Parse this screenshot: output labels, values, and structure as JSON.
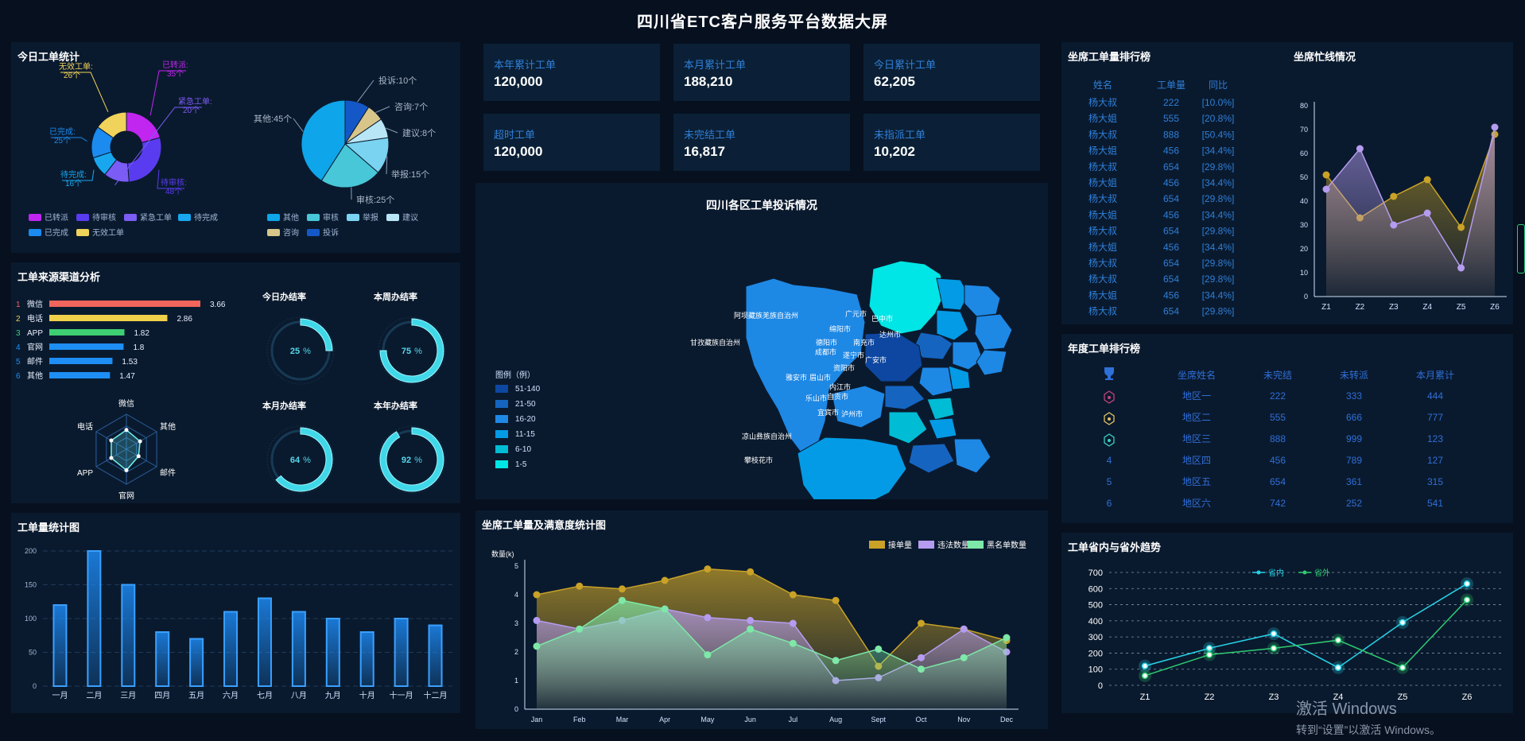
{
  "header": {
    "title": "四川省ETC客户服务平台数据大屏"
  },
  "today_stats": {
    "title": "今日工单统计",
    "donut": {
      "slices": [
        {
          "name": "已转派",
          "value": 35,
          "label": "已转派:",
          "vlabel": "35个",
          "color": "#c026f0"
        },
        {
          "name": "待审核",
          "value": 48,
          "label": "待审核:",
          "vlabel": "48个",
          "color": "#5a3cf0"
        },
        {
          "name": "紧急工单",
          "value": 20,
          "label": "紧急工单:",
          "vlabel": "20个",
          "color": "#7b5cf5"
        },
        {
          "name": "待完成",
          "value": 16,
          "label": "待完成:",
          "vlabel": "16个",
          "color": "#18a7ef"
        },
        {
          "name": "已完成",
          "value": 25,
          "label": "已完成:",
          "vlabel": "25个",
          "color": "#1b8bf0"
        },
        {
          "name": "无效工单",
          "value": 26,
          "label": "无效工单:",
          "vlabel": "26个",
          "color": "#f0d35a"
        }
      ],
      "legend": [
        "已转派",
        "待审核",
        "紧急工单",
        "待完成",
        "已完成",
        "无效工单"
      ]
    },
    "pie": {
      "slices": [
        {
          "name": "投诉",
          "value": 10,
          "label": "投诉:10个",
          "color": "#1458c8"
        },
        {
          "name": "咨询",
          "value": 7,
          "label": "咨询:7个",
          "color": "#d8c58a"
        },
        {
          "name": "建议",
          "value": 8,
          "label": "建议:8个",
          "color": "#b8e6f6"
        },
        {
          "name": "举报",
          "value": 15,
          "label": "举报:15个",
          "color": "#7ad3f0"
        },
        {
          "name": "审核",
          "value": 25,
          "label": "审核:25个",
          "color": "#48c7d8"
        },
        {
          "name": "其他",
          "value": 45,
          "label": "其他:45个",
          "color": "#0ea5ea"
        }
      ],
      "legend": [
        "其他",
        "审核",
        "举报",
        "建议",
        "咨询",
        "投诉"
      ]
    }
  },
  "source": {
    "title": "工单来源渠道分析",
    "bars": [
      {
        "rank": "1",
        "name": "微信",
        "value": 3.66,
        "color": "#f0655c"
      },
      {
        "rank": "2",
        "name": "电话",
        "value": 2.86,
        "color": "#f0cf4a"
      },
      {
        "rank": "3",
        "name": "APP",
        "value": 1.82,
        "color": "#3ecf72"
      },
      {
        "rank": "4",
        "name": "官网",
        "value": 1.8,
        "color": "#1e8ef5"
      },
      {
        "rank": "5",
        "name": "邮件",
        "value": 1.53,
        "color": "#1e8ef5"
      },
      {
        "rank": "6",
        "name": "其他",
        "value": 1.47,
        "color": "#1e8ef5"
      }
    ],
    "radar": {
      "axes": [
        "微信",
        "其他",
        "邮件",
        "官网",
        "APP",
        "电话"
      ],
      "values": [
        0.55,
        0.45,
        0.4,
        0.6,
        0.5,
        0.5
      ]
    },
    "rings": [
      {
        "title": "今日办结率",
        "value": 25,
        "unit": "%"
      },
      {
        "title": "本周办结率",
        "value": 75,
        "unit": "%"
      },
      {
        "title": "本月办结率",
        "value": 64,
        "unit": "%"
      },
      {
        "title": "本年办结率",
        "value": 92,
        "unit": "%"
      }
    ]
  },
  "volume": {
    "title": "工单量统计图",
    "chart_data": {
      "type": "bar",
      "categories": [
        "一月",
        "二月",
        "三月",
        "四月",
        "五月",
        "六月",
        "七月",
        "八月",
        "九月",
        "十月",
        "十一月",
        "十二月"
      ],
      "values": [
        120,
        200,
        150,
        80,
        70,
        110,
        130,
        110,
        100,
        80,
        100,
        90
      ],
      "ylim": [
        0,
        200
      ],
      "yticks": [
        0,
        50,
        100,
        150,
        200
      ]
    }
  },
  "kpis": [
    {
      "label": "本年累计工单",
      "value": "120,000"
    },
    {
      "label": "本月累计工单",
      "value": "188,210"
    },
    {
      "label": "今日累计工单",
      "value": "62,205"
    },
    {
      "label": "超时工单",
      "value": "120,000"
    },
    {
      "label": "未完结工单",
      "value": "16,817"
    },
    {
      "label": "未指派工单",
      "value": "10,202"
    }
  ],
  "map": {
    "title": "四川各区工单投诉情况",
    "legend_title": "图例（例）",
    "legend": [
      {
        "label": "51-140",
        "color": "#0d47a1"
      },
      {
        "label": "21-50",
        "color": "#1565c0"
      },
      {
        "label": "16-20",
        "color": "#1e88e5"
      },
      {
        "label": "11-15",
        "color": "#039be5"
      },
      {
        "label": "6-10",
        "color": "#00bcd4"
      },
      {
        "label": "1-5",
        "color": "#00e5e5"
      }
    ],
    "regions": [
      "阿坝藏族羌族自治州",
      "广元市",
      "巴中市",
      "绵阳市",
      "达州市",
      "甘孜藏族自治州",
      "德阳市",
      "南充市",
      "成都市",
      "遂宁市",
      "资阳市",
      "广安市",
      "雅安市",
      "眉山市",
      "内江市",
      "乐山市",
      "自贡市",
      "宜宾市",
      "泸州市",
      "凉山彝族自治州",
      "攀枝花市"
    ]
  },
  "seat_chart": {
    "title": "坐席工单量及满意度统计图",
    "chart_data": {
      "type": "area",
      "ylabel": "数量(k)",
      "categories": [
        "Jan",
        "Feb",
        "Mar",
        "Apr",
        "May",
        "Jun",
        "Jul",
        "Aug",
        "Sept",
        "Oct",
        "Nov",
        "Dec"
      ],
      "ylim": [
        0,
        5
      ],
      "yticks": [
        0,
        1,
        2,
        3,
        4,
        5
      ],
      "series": [
        {
          "name": "接单量",
          "values": [
            4.0,
            4.3,
            4.2,
            4.5,
            4.9,
            4.8,
            4.0,
            3.8,
            1.5,
            3.0,
            2.8,
            2.4
          ],
          "color": "#c9a227"
        },
        {
          "name": "违法数量",
          "values": [
            3.1,
            2.8,
            3.1,
            3.5,
            3.2,
            3.1,
            3.0,
            1.0,
            1.1,
            1.8,
            2.8,
            2.0
          ],
          "color": "#b59cf0"
        },
        {
          "name": "黑名单数量",
          "values": [
            2.2,
            2.8,
            3.8,
            3.5,
            1.9,
            2.8,
            2.3,
            1.7,
            2.1,
            1.4,
            1.8,
            2.5
          ],
          "color": "#7ee8a8"
        }
      ]
    }
  },
  "seat_rank": {
    "title": "坐席工单量排行榜",
    "headers": [
      "姓名",
      "工单量",
      "同比"
    ],
    "rows": [
      [
        "杨大叔",
        "222",
        "[10.0%]"
      ],
      [
        "杨大姐",
        "555",
        "[20.8%]"
      ],
      [
        "杨大叔",
        "888",
        "[50.4%]"
      ],
      [
        "杨大姐",
        "456",
        "[34.4%]"
      ],
      [
        "杨大叔",
        "654",
        "[29.8%]"
      ],
      [
        "杨大姐",
        "456",
        "[34.4%]"
      ],
      [
        "杨大叔",
        "654",
        "[29.8%]"
      ],
      [
        "杨大姐",
        "456",
        "[34.4%]"
      ],
      [
        "杨大叔",
        "654",
        "[29.8%]"
      ],
      [
        "杨大姐",
        "456",
        "[34.4%]"
      ],
      [
        "杨大叔",
        "654",
        "[29.8%]"
      ],
      [
        "杨大叔",
        "654",
        "[29.8%]"
      ],
      [
        "杨大姐",
        "456",
        "[34.4%]"
      ],
      [
        "杨大叔",
        "654",
        "[29.8%]"
      ]
    ]
  },
  "busy": {
    "title": "坐席忙线情况",
    "chart_data": {
      "type": "area",
      "categories": [
        "Z1",
        "Z2",
        "Z3",
        "Z4",
        "Z5",
        "Z6"
      ],
      "ylim": [
        0,
        80
      ],
      "yticks": [
        0,
        10,
        20,
        30,
        40,
        50,
        60,
        70,
        80
      ],
      "series": [
        {
          "values": [
            51,
            33,
            42,
            49,
            29,
            68
          ],
          "color": "#c9a227"
        },
        {
          "values": [
            45,
            62,
            30,
            35,
            12,
            71
          ],
          "color": "#b59cf0"
        }
      ]
    }
  },
  "annual_rank": {
    "title": "年度工单排行榜",
    "headers": [
      "坐席姓名",
      "未完结",
      "未转派",
      "本月累计"
    ],
    "rows": [
      {
        "rank": "1",
        "name": "地区一",
        "a": "222",
        "b": "333",
        "c": "444"
      },
      {
        "rank": "2",
        "name": "地区二",
        "a": "555",
        "b": "666",
        "c": "777"
      },
      {
        "rank": "3",
        "name": "地区三",
        "a": "888",
        "b": "999",
        "c": "123"
      },
      {
        "rank": "4",
        "name": "地区四",
        "a": "456",
        "b": "789",
        "c": "127"
      },
      {
        "rank": "5",
        "name": "地区五",
        "a": "654",
        "b": "361",
        "c": "315"
      },
      {
        "rank": "6",
        "name": "地区六",
        "a": "742",
        "b": "252",
        "c": "541"
      }
    ]
  },
  "trend": {
    "title": "工单省内与省外趋势",
    "chart_data": {
      "type": "line",
      "categories": [
        "Z1",
        "Z2",
        "Z3",
        "Z4",
        "Z5",
        "Z6"
      ],
      "ylim": [
        0,
        700
      ],
      "yticks": [
        0,
        100,
        200,
        300,
        400,
        500,
        600,
        700
      ],
      "series": [
        {
          "name": "省内",
          "values": [
            120,
            230,
            320,
            110,
            390,
            630
          ],
          "color": "#27d3e8"
        },
        {
          "name": "省外",
          "values": [
            60,
            190,
            230,
            280,
            110,
            530
          ],
          "color": "#2ecc71"
        }
      ]
    }
  },
  "watermark": {
    "line1": "激活 Windows",
    "line2": "转到“设置”以激活 Windows。"
  }
}
